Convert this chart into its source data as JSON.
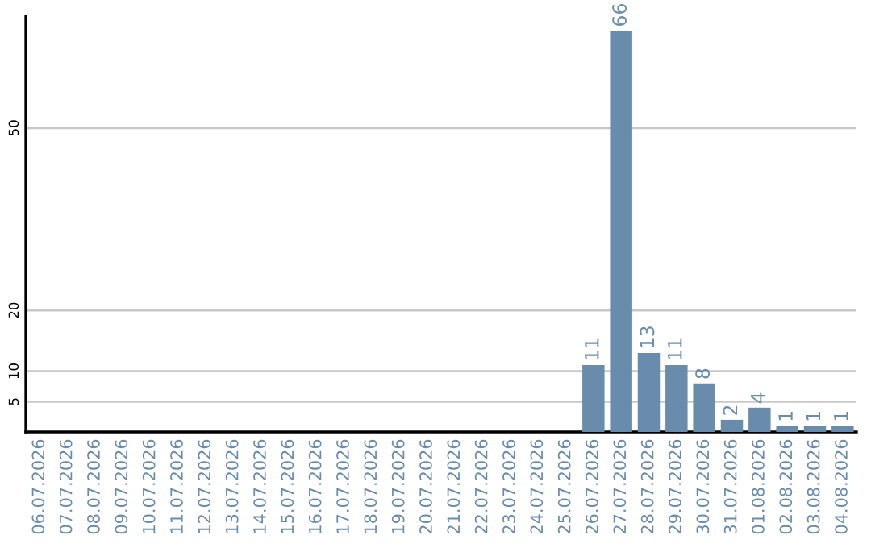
{
  "chart_data": {
    "type": "bar",
    "categories": [
      "06.07.2026",
      "07.07.2026",
      "08.07.2026",
      "09.07.2026",
      "10.07.2026",
      "11.07.2026",
      "12.07.2026",
      "13.07.2026",
      "14.07.2026",
      "15.07.2026",
      "16.07.2026",
      "17.07.2026",
      "18.07.2026",
      "19.07.2026",
      "20.07.2026",
      "21.07.2026",
      "22.07.2026",
      "23.07.2026",
      "24.07.2026",
      "25.07.2026",
      "26.07.2026",
      "27.07.2026",
      "28.07.2026",
      "29.07.2026",
      "30.07.2026",
      "31.07.2026",
      "01.08.2026",
      "02.08.2026",
      "03.08.2026",
      "04.08.2026"
    ],
    "values": [
      0,
      0,
      0,
      0,
      0,
      0,
      0,
      0,
      0,
      0,
      0,
      0,
      0,
      0,
      0,
      0,
      0,
      0,
      0,
      0,
      11,
      66,
      13,
      11,
      8,
      2,
      4,
      1,
      1,
      1
    ],
    "value_labels": [
      null,
      null,
      null,
      null,
      null,
      null,
      null,
      null,
      null,
      null,
      null,
      null,
      null,
      null,
      null,
      null,
      null,
      null,
      null,
      null,
      "11",
      "66",
      "13",
      "11",
      "8",
      "2",
      "4",
      "1",
      "1",
      "1"
    ],
    "color": "#6a8cac",
    "ylim": [
      0,
      68.4
    ],
    "yticks": [
      5,
      10,
      20,
      50
    ],
    "grid": "y"
  }
}
